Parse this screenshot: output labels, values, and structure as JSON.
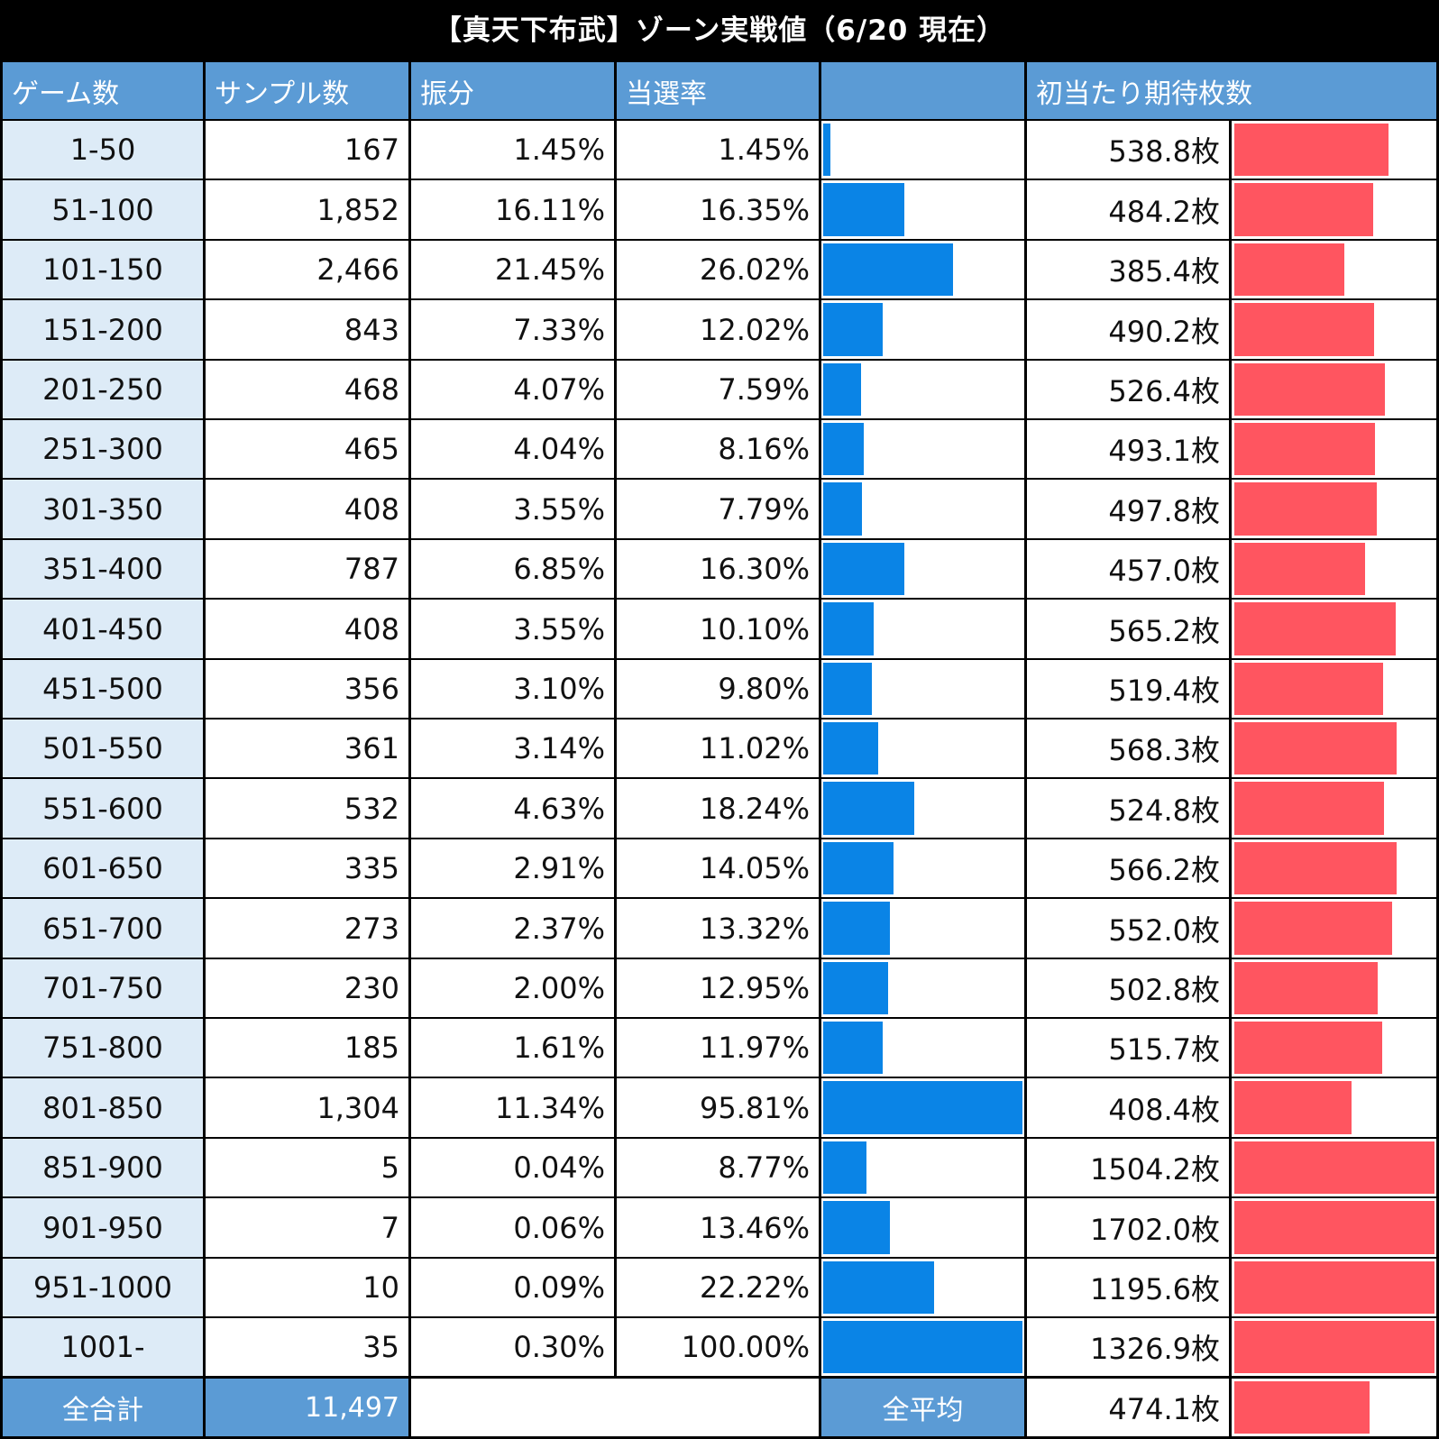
{
  "title": "【真天下布武】ゾーン実戦値（6/20 現在）",
  "headers": {
    "game_count": "ゲーム数",
    "sample_count": "サンプル数",
    "distribution": "振分",
    "win_rate": "当選率",
    "win_rate_bar": "",
    "expected_medals": "初当たり期待枚数"
  },
  "footer": {
    "total_label": "全合計",
    "total_value": "11,497",
    "avg_label": "全平均",
    "avg_value": "474.1枚",
    "avg_number": 474.1
  },
  "colors": {
    "header": "#5b9bd5",
    "first_col": "#ddebf7",
    "blue_bar": "#0a84e6",
    "red_bar": "#ff5560",
    "border": "#000000",
    "grid": "#d9d9d9"
  },
  "chart_data": {
    "type": "table",
    "title": "【真天下布武】ゾーン実戦値（6/20 現在）",
    "columns": [
      "ゲーム数",
      "サンプル数",
      "振分",
      "当選率",
      "",
      "初当たり期待枚数"
    ],
    "rows": [
      {
        "zone": "1-50",
        "samples": "167",
        "dist": "1.45%",
        "rate": "1.45%",
        "rate_value": 1.45,
        "medals": "538.8枚",
        "medals_value": 538.8
      },
      {
        "zone": "51-100",
        "samples": "1,852",
        "dist": "16.11%",
        "rate": "16.35%",
        "rate_value": 16.35,
        "medals": "484.2枚",
        "medals_value": 484.2
      },
      {
        "zone": "101-150",
        "samples": "2,466",
        "dist": "21.45%",
        "rate": "26.02%",
        "rate_value": 26.02,
        "medals": "385.4枚",
        "medals_value": 385.4
      },
      {
        "zone": "151-200",
        "samples": "843",
        "dist": "7.33%",
        "rate": "12.02%",
        "rate_value": 12.02,
        "medals": "490.2枚",
        "medals_value": 490.2
      },
      {
        "zone": "201-250",
        "samples": "468",
        "dist": "4.07%",
        "rate": "7.59%",
        "rate_value": 7.59,
        "medals": "526.4枚",
        "medals_value": 526.4
      },
      {
        "zone": "251-300",
        "samples": "465",
        "dist": "4.04%",
        "rate": "8.16%",
        "rate_value": 8.16,
        "medals": "493.1枚",
        "medals_value": 493.1
      },
      {
        "zone": "301-350",
        "samples": "408",
        "dist": "3.55%",
        "rate": "7.79%",
        "rate_value": 7.79,
        "medals": "497.8枚",
        "medals_value": 497.8
      },
      {
        "zone": "351-400",
        "samples": "787",
        "dist": "6.85%",
        "rate": "16.30%",
        "rate_value": 16.3,
        "medals": "457.0枚",
        "medals_value": 457.0
      },
      {
        "zone": "401-450",
        "samples": "408",
        "dist": "3.55%",
        "rate": "10.10%",
        "rate_value": 10.1,
        "medals": "565.2枚",
        "medals_value": 565.2
      },
      {
        "zone": "451-500",
        "samples": "356",
        "dist": "3.10%",
        "rate": "9.80%",
        "rate_value": 9.8,
        "medals": "519.4枚",
        "medals_value": 519.4
      },
      {
        "zone": "501-550",
        "samples": "361",
        "dist": "3.14%",
        "rate": "11.02%",
        "rate_value": 11.02,
        "medals": "568.3枚",
        "medals_value": 568.3
      },
      {
        "zone": "551-600",
        "samples": "532",
        "dist": "4.63%",
        "rate": "18.24%",
        "rate_value": 18.24,
        "medals": "524.8枚",
        "medals_value": 524.8
      },
      {
        "zone": "601-650",
        "samples": "335",
        "dist": "2.91%",
        "rate": "14.05%",
        "rate_value": 14.05,
        "medals": "566.2枚",
        "medals_value": 566.2
      },
      {
        "zone": "651-700",
        "samples": "273",
        "dist": "2.37%",
        "rate": "13.32%",
        "rate_value": 13.32,
        "medals": "552.0枚",
        "medals_value": 552.0
      },
      {
        "zone": "701-750",
        "samples": "230",
        "dist": "2.00%",
        "rate": "12.95%",
        "rate_value": 12.95,
        "medals": "502.8枚",
        "medals_value": 502.8
      },
      {
        "zone": "751-800",
        "samples": "185",
        "dist": "1.61%",
        "rate": "11.97%",
        "rate_value": 11.97,
        "medals": "515.7枚",
        "medals_value": 515.7
      },
      {
        "zone": "801-850",
        "samples": "1,304",
        "dist": "11.34%",
        "rate": "95.81%",
        "rate_value": 95.81,
        "medals": "408.4枚",
        "medals_value": 408.4
      },
      {
        "zone": "851-900",
        "samples": "5",
        "dist": "0.04%",
        "rate": "8.77%",
        "rate_value": 8.77,
        "medals": "1504.2枚",
        "medals_value": 1504.2
      },
      {
        "zone": "901-950",
        "samples": "7",
        "dist": "0.06%",
        "rate": "13.46%",
        "rate_value": 13.46,
        "medals": "1702.0枚",
        "medals_value": 1702.0
      },
      {
        "zone": "951-1000",
        "samples": "10",
        "dist": "0.09%",
        "rate": "22.22%",
        "rate_value": 22.22,
        "medals": "1195.6枚",
        "medals_value": 1195.6
      },
      {
        "zone": "1001-",
        "samples": "35",
        "dist": "0.30%",
        "rate": "100.00%",
        "rate_value": 100.0,
        "medals": "1326.9枚",
        "medals_value": 1326.9
      }
    ],
    "rate_bar_range": [
      0,
      40
    ],
    "medals_bar_range": [
      0,
      700
    ]
  }
}
